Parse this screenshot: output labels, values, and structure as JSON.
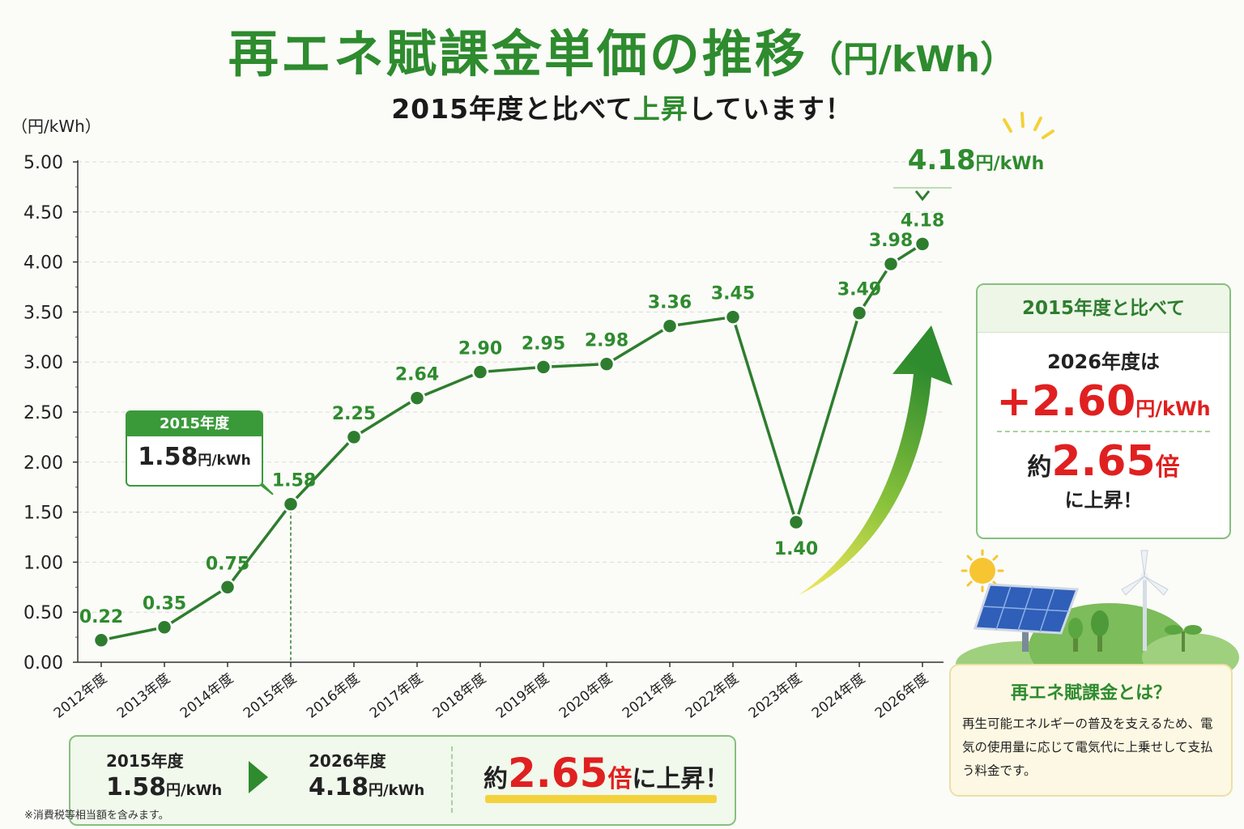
{
  "title": {
    "main": "再エネ賦課金単価の推移",
    "unit": "（円/kWh）"
  },
  "subtitle": {
    "pre": "2015年度と比べて",
    "highlight": "上昇",
    "post": "しています！"
  },
  "chart_data": {
    "type": "line",
    "ylabel": "（円/kWh）",
    "ylim": [
      0,
      5
    ],
    "yticks": [
      "0.00",
      "0.50",
      "1.00",
      "1.50",
      "2.00",
      "2.50",
      "3.00",
      "3.50",
      "4.00",
      "4.50",
      "5.00"
    ],
    "categories": [
      "2012年度",
      "2013年度",
      "2014年度",
      "2015年度",
      "2016年度",
      "2017年度",
      "2018年度",
      "2019年度",
      "2020年度",
      "2021年度",
      "2022年度",
      "2023年度",
      "2024年度",
      "2026年度"
    ],
    "values": [
      0.22,
      0.35,
      0.75,
      1.58,
      2.25,
      2.64,
      2.9,
      2.95,
      2.98,
      3.36,
      3.45,
      1.4,
      3.49,
      4.18
    ],
    "value_labels": [
      "0.22",
      "0.35",
      "0.75",
      "1.58",
      "2.25",
      "2.64",
      "2.90",
      "2.95",
      "2.98",
      "3.36",
      "3.45",
      "1.40",
      "3.49",
      "4.18"
    ],
    "extra_point": {
      "value": 3.98,
      "label": "3.98"
    },
    "grid": true,
    "line_color": "#2e7d2e",
    "label_color": "#2e8b2e"
  },
  "callout_2015": {
    "year": "2015年度",
    "value": "1.58",
    "unit": "円/kWh"
  },
  "callout_top": {
    "value": "4.18",
    "unit": "円/kWh"
  },
  "comparison": {
    "header": "2015年度と比べて",
    "line1": "2026年度は",
    "diff": "+2.60",
    "diff_unit": "円/kWh",
    "ratio_pre": "約",
    "ratio": "2.65",
    "ratio_suffix": "倍",
    "tail": "に上昇！"
  },
  "info": {
    "title": "再エネ賦課金とは？",
    "text": "再生可能エネルギーの普及を支えるため、電気の使用量に応じて電気代に上乗せして支払う料金です。"
  },
  "bottom": {
    "from_year": "2015年度",
    "from_value": "1.58",
    "from_unit": "円/kWh",
    "to_year": "2026年度",
    "to_value": "4.18",
    "to_unit": "円/kWh",
    "ratio_pre": "約",
    "ratio": "2.65",
    "ratio_suffix": "倍",
    "ratio_post": "に上昇！"
  },
  "footnote": "※消費税等相当額を含みます。",
  "colors": {
    "accent": "#2e8b2e",
    "highlight": "#e02020",
    "marker": "#f4d23c"
  }
}
